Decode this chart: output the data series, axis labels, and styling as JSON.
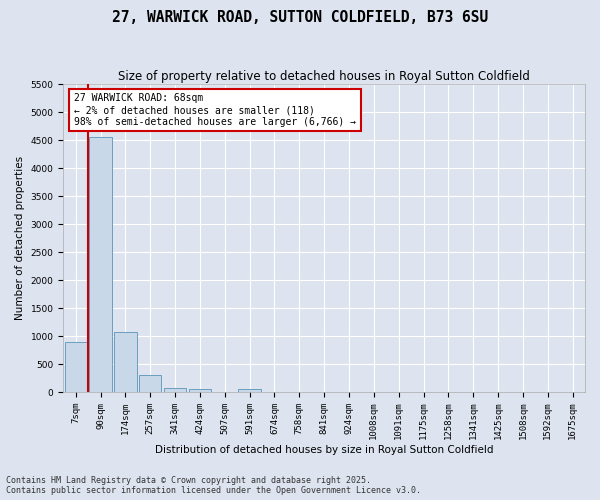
{
  "title": "27, WARWICK ROAD, SUTTON COLDFIELD, B73 6SU",
  "subtitle": "Size of property relative to detached houses in Royal Sutton Coldfield",
  "xlabel": "Distribution of detached houses by size in Royal Sutton Coldfield",
  "ylabel": "Number of detached properties",
  "categories": [
    "7sqm",
    "90sqm",
    "174sqm",
    "257sqm",
    "341sqm",
    "424sqm",
    "507sqm",
    "591sqm",
    "674sqm",
    "758sqm",
    "841sqm",
    "924sqm",
    "1008sqm",
    "1091sqm",
    "1175sqm",
    "1258sqm",
    "1341sqm",
    "1425sqm",
    "1508sqm",
    "1592sqm",
    "1675sqm"
  ],
  "values": [
    900,
    4550,
    1075,
    300,
    75,
    60,
    0,
    50,
    0,
    0,
    0,
    0,
    0,
    0,
    0,
    0,
    0,
    0,
    0,
    0,
    0
  ],
  "bar_color": "#c8d8e8",
  "bar_edge_color": "#6a9ec0",
  "background_color": "#dde4ef",
  "grid_color": "#ffffff",
  "vline_color": "#cc0000",
  "annotation_text": "27 WARWICK ROAD: 68sqm\n← 2% of detached houses are smaller (118)\n98% of semi-detached houses are larger (6,766) →",
  "annotation_box_color": "#cc0000",
  "ylim": [
    0,
    5500
  ],
  "yticks": [
    0,
    500,
    1000,
    1500,
    2000,
    2500,
    3000,
    3500,
    4000,
    4500,
    5000,
    5500
  ],
  "footer_text": "Contains HM Land Registry data © Crown copyright and database right 2025.\nContains public sector information licensed under the Open Government Licence v3.0.",
  "title_fontsize": 10.5,
  "subtitle_fontsize": 8.5,
  "axis_label_fontsize": 7.5,
  "tick_fontsize": 6.5,
  "annotation_fontsize": 7,
  "footer_fontsize": 6
}
